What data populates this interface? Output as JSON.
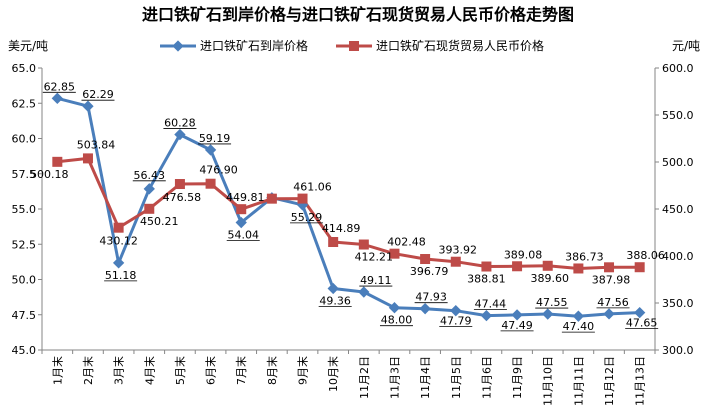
{
  "chart_data": {
    "type": "line",
    "title": "进口铁矿石到岸价格与进口铁矿石现货贸易人民币价格走势图",
    "left_unit": "美元/吨",
    "right_unit": "元/吨",
    "categories": [
      "1月末",
      "2月末",
      "3月末",
      "4月末",
      "5月末",
      "6月末",
      "7月末",
      "8月末",
      "9月末",
      "10月末",
      "11月2日",
      "11月3日",
      "11月4日",
      "11月5日",
      "11月6日",
      "11月9日",
      "11月10日",
      "11月11日",
      "11月12日",
      "11月13日"
    ],
    "left_axis": {
      "min": 45.0,
      "max": 65.0,
      "ticks": [
        "45.0",
        "47.5",
        "50.0",
        "52.5",
        "55.0",
        "57.5",
        "60.0",
        "62.5",
        "65.0"
      ]
    },
    "right_axis": {
      "min": 300.0,
      "max": 600.0,
      "ticks": [
        "300.0",
        "350.0",
        "400.0",
        "450.0",
        "500.0",
        "550.0",
        "600.0"
      ]
    },
    "grid": false,
    "legend_position": "top",
    "series": [
      {
        "name": "进口铁矿石到岸价格",
        "axis": "left",
        "color": "#4a7ebb",
        "marker": "diamond",
        "values": [
          62.85,
          62.29,
          51.18,
          56.43,
          60.28,
          59.19,
          54.04,
          55.8,
          55.29,
          49.36,
          49.11,
          48.0,
          47.93,
          47.79,
          47.44,
          47.49,
          47.55,
          47.4,
          47.56,
          47.65
        ],
        "labels": [
          "62.85",
          "62.29",
          "51.18",
          "56.43",
          "60.28",
          "59.19",
          "54.04",
          "",
          "55.29",
          "49.36",
          "49.11",
          "48.00",
          "47.93",
          "47.79",
          "47.44",
          "47.49",
          "47.55",
          "47.40",
          "47.56",
          "47.65"
        ]
      },
      {
        "name": "进口铁矿石现货贸易人民币价格",
        "axis": "right",
        "color": "#be4b48",
        "marker": "square",
        "values": [
          500.18,
          503.84,
          430.12,
          450.21,
          476.58,
          476.9,
          449.81,
          461.0,
          461.06,
          414.89,
          412.21,
          402.48,
          396.79,
          393.92,
          388.81,
          389.08,
          389.6,
          386.73,
          387.98,
          388.06
        ],
        "labels": [
          "500.18",
          "503.84",
          "430.12",
          "450.21",
          "476.58",
          "476.90",
          "449.81",
          "",
          "461.06",
          "414.89",
          "412.21",
          "402.48",
          "396.79",
          "393.92",
          "388.81",
          "389.08",
          "389.60",
          "386.73",
          "387.98",
          "388.06"
        ]
      }
    ]
  }
}
